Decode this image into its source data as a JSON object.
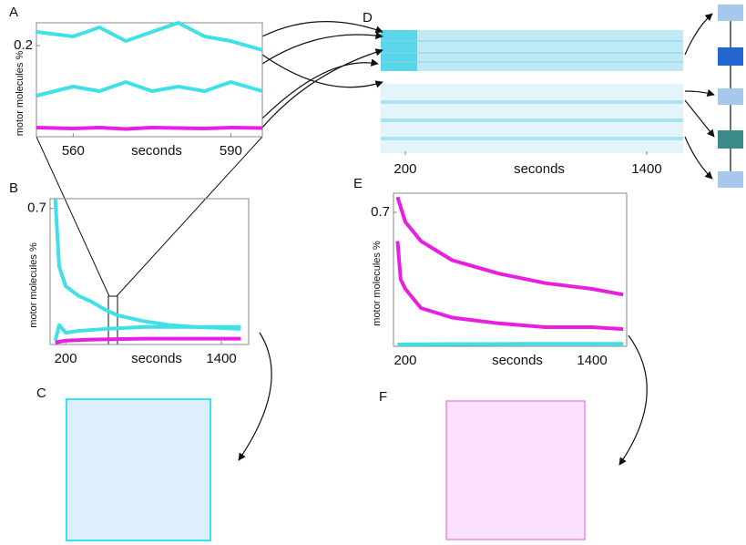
{
  "chart_data": [
    {
      "panel": "A",
      "type": "line",
      "ylabel": "motor molecules %",
      "xlabel": "seconds",
      "xlim": [
        553,
        596
      ],
      "xticks": [
        560,
        590
      ],
      "ylim": [
        0,
        0.25
      ],
      "yticks": [
        0.2
      ],
      "series": [
        {
          "color": "#3fe0e8",
          "x": [
            553,
            560,
            565,
            570,
            575,
            580,
            585,
            590,
            596
          ],
          "values": [
            0.23,
            0.22,
            0.24,
            0.21,
            0.23,
            0.25,
            0.22,
            0.21,
            0.19
          ]
        },
        {
          "color": "#3fe0e8",
          "x": [
            553,
            560,
            565,
            570,
            575,
            580,
            585,
            590,
            596
          ],
          "values": [
            0.09,
            0.11,
            0.1,
            0.12,
            0.1,
            0.11,
            0.1,
            0.12,
            0.1
          ]
        },
        {
          "color": "#e81fe0",
          "x": [
            553,
            560,
            565,
            570,
            575,
            580,
            585,
            590,
            596
          ],
          "values": [
            0.02,
            0.018,
            0.02,
            0.017,
            0.02,
            0.019,
            0.018,
            0.02,
            0.019
          ]
        }
      ]
    },
    {
      "panel": "B",
      "type": "line",
      "ylabel": "motor molecules %",
      "xlabel": "seconds",
      "xlim": [
        80,
        1610
      ],
      "xticks": [
        200,
        1400
      ],
      "ylim": [
        0,
        0.75
      ],
      "yticks": [
        0.7
      ],
      "series": [
        {
          "color": "#3fe0e8",
          "x": [
            120,
            150,
            200,
            300,
            400,
            500,
            600,
            800,
            1000,
            1200,
            1400,
            1550
          ],
          "values": [
            0.75,
            0.4,
            0.3,
            0.25,
            0.22,
            0.18,
            0.15,
            0.12,
            0.1,
            0.09,
            0.085,
            0.08
          ]
        },
        {
          "color": "#3fe0e8",
          "x": [
            120,
            150,
            200,
            300,
            500,
            800,
            1100,
            1400,
            1550
          ],
          "values": [
            0.02,
            0.1,
            0.06,
            0.07,
            0.08,
            0.09,
            0.09,
            0.09,
            0.09
          ]
        },
        {
          "color": "#e81fe0",
          "x": [
            120,
            200,
            400,
            800,
            1200,
            1550
          ],
          "values": [
            0.01,
            0.02,
            0.025,
            0.03,
            0.03,
            0.03
          ]
        }
      ]
    },
    {
      "panel": "C"
    },
    {
      "panel": "D",
      "type": "heatmap",
      "xlabel": "seconds",
      "xlim": [
        78,
        1581
      ],
      "xticks": [
        200,
        1400
      ]
    },
    {
      "panel": "E",
      "type": "line",
      "ylabel": "motor molecules %",
      "xlabel": "seconds",
      "xlim": [
        124,
        1622
      ],
      "xticks": [
        200,
        1400
      ],
      "ylim": [
        0,
        0.8
      ],
      "yticks": [
        0.7
      ],
      "series": [
        {
          "color": "#e81fe0",
          "x": [
            150,
            200,
            300,
            500,
            800,
            1100,
            1400,
            1600
          ],
          "values": [
            0.78,
            0.65,
            0.55,
            0.45,
            0.38,
            0.33,
            0.3,
            0.27
          ]
        },
        {
          "color": "#e81fe0",
          "x": [
            150,
            170,
            200,
            300,
            500,
            800,
            1100,
            1400,
            1600
          ],
          "values": [
            0.55,
            0.35,
            0.3,
            0.2,
            0.15,
            0.12,
            0.1,
            0.1,
            0.09
          ]
        },
        {
          "color": "#3fe0e8",
          "x": [
            150,
            500,
            1000,
            1600
          ],
          "values": [
            0.01,
            0.012,
            0.013,
            0.013
          ]
        }
      ]
    },
    {
      "panel": "F"
    }
  ]
}
